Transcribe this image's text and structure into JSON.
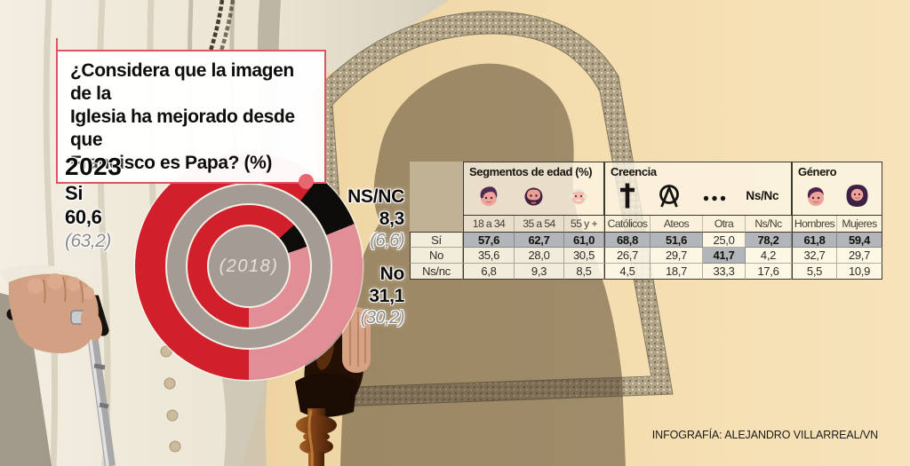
{
  "title": {
    "text": "¿Considera que la imagen de la\nIglesia ha mejorado desde que\nFrancisco es Papa? (%)"
  },
  "accent": {
    "border": "#dd5560",
    "dot": "#e8666f"
  },
  "colors": {
    "highlight": "#b2b6bb"
  },
  "credit": "INFOGRAFÍA: ALEJANDRO VILLARREAL/VN",
  "chart_data": [
    {
      "type": "donut",
      "title": "¿Considera que la imagen de la Iglesia ha mejorado desde que Francisco es Papa? (%)",
      "categories": [
        "Si",
        "NS/NC",
        "No"
      ],
      "series": [
        {
          "name": "2023",
          "values": [
            60.6,
            8.3,
            31.1
          ]
        },
        {
          "name": "2018",
          "values": [
            63.2,
            6.6,
            30.2
          ]
        }
      ],
      "center_label": "(2018)",
      "start_angle_deg": 180,
      "legend_position": "sides",
      "colors": {
        "si": "#d1202b",
        "nsnc": "#0e0c0a",
        "no": "#e28e96",
        "ring_gray": "#a49b95"
      },
      "labels": {
        "year": "2023",
        "si_name": "Si",
        "si_value": "60,6",
        "si_prev": "(63,2)",
        "nsnc_name": "NS/NC",
        "nsnc_value": "8,3",
        "nsnc_prev": "(6,6)",
        "no_name": "No",
        "no_value": "31,1",
        "no_prev": "(30,2)"
      }
    },
    {
      "type": "table",
      "groups": [
        {
          "label": "Segmentos de edad (%)",
          "span": 3
        },
        {
          "label": "Creencia",
          "span": 4
        },
        {
          "label": "Género",
          "span": 2
        }
      ],
      "columns": [
        {
          "header": "18 a 34",
          "icon": "young-face-icon"
        },
        {
          "header": "35 a 54",
          "icon": "adult-face-icon"
        },
        {
          "header": "55 y +",
          "icon": "elder-face-icon"
        },
        {
          "header": "Católicos",
          "icon": "cross-icon"
        },
        {
          "header": "Ateos",
          "icon": "atheism-icon"
        },
        {
          "header": "Otra",
          "icon": "ellipsis-icon"
        },
        {
          "header": "Ns/Nc",
          "icon": "nsnc-text",
          "icon_text": "Ns/Nc"
        },
        {
          "header": "Hombres",
          "icon": "man-face-icon"
        },
        {
          "header": "Mujeres",
          "icon": "woman-face-icon"
        }
      ],
      "rows": [
        {
          "label": "Sí",
          "values": [
            "57,6",
            "62,7",
            "61,0",
            "68,8",
            "51,6",
            "25,0",
            "78,2",
            "61,8",
            "59,4"
          ],
          "highlight": [
            true,
            true,
            true,
            true,
            true,
            false,
            true,
            true,
            true
          ]
        },
        {
          "label": "No",
          "values": [
            "35,6",
            "28,0",
            "30,5",
            "26,7",
            "29,7",
            "41,7",
            "4,2",
            "32,7",
            "29,7"
          ],
          "highlight": [
            false,
            false,
            false,
            false,
            false,
            true,
            false,
            false,
            false
          ]
        },
        {
          "label": "Ns/nc",
          "values": [
            "6,8",
            "9,3",
            "8,5",
            "4,5",
            "18,7",
            "33,3",
            "17,6",
            "5,5",
            "10,9"
          ],
          "highlight": [
            false,
            false,
            false,
            false,
            false,
            false,
            false,
            false,
            false
          ]
        }
      ]
    }
  ]
}
